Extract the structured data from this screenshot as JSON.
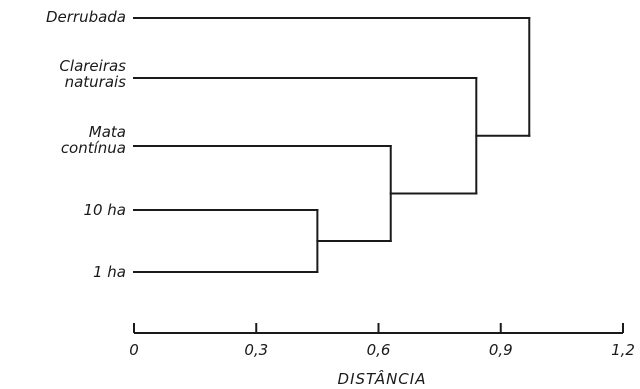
{
  "chart_data": {
    "type": "dendrogram",
    "xlabel": "DISTÂNCIA",
    "xlim": [
      0,
      1.2
    ],
    "ticks": [
      {
        "value": 0,
        "label": "0"
      },
      {
        "value": 0.3,
        "label": "0,3"
      },
      {
        "value": 0.6,
        "label": "0,6"
      },
      {
        "value": 0.9,
        "label": "0,9"
      },
      {
        "value": 1.2,
        "label": "1,2"
      }
    ],
    "leaves": [
      {
        "id": "derrubada",
        "lines": [
          "Derrubada"
        ]
      },
      {
        "id": "clareiras",
        "lines": [
          "Clareiras",
          "naturais"
        ]
      },
      {
        "id": "mata",
        "lines": [
          "Mata",
          "contínua"
        ]
      },
      {
        "id": "10ha",
        "lines": [
          "10 ha"
        ]
      },
      {
        "id": "1ha",
        "lines": [
          "1 ha"
        ]
      }
    ],
    "merges": [
      {
        "id": "m1",
        "children": [
          "10ha",
          "1ha"
        ],
        "distance": 0.45
      },
      {
        "id": "m2",
        "children": [
          "mata",
          "m1"
        ],
        "distance": 0.63
      },
      {
        "id": "m3",
        "children": [
          "clareiras",
          "m2"
        ],
        "distance": 0.84
      },
      {
        "id": "m4",
        "children": [
          "derrubada",
          "m3"
        ],
        "distance": 0.97
      }
    ]
  }
}
